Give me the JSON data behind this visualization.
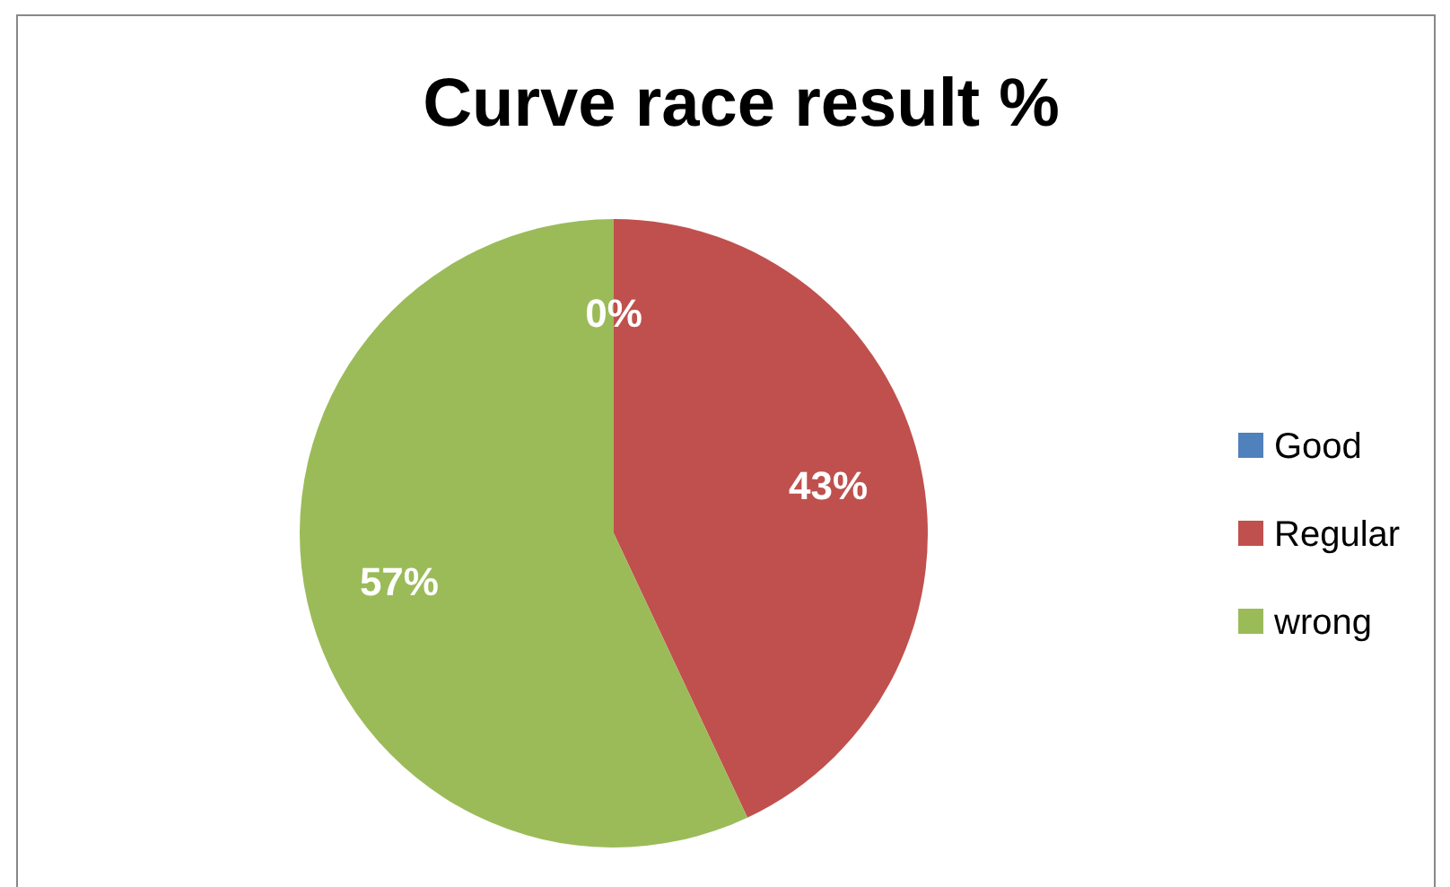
{
  "chart_data": {
    "type": "pie",
    "title": "Curve race result %",
    "categories": [
      "Good",
      "Regular",
      "wrong"
    ],
    "values": [
      0,
      43,
      57
    ],
    "colors": [
      "#4f81bd",
      "#c0504d",
      "#9bbb59"
    ],
    "value_labels": [
      "0%",
      "43%",
      "57%"
    ],
    "legend": "right"
  }
}
